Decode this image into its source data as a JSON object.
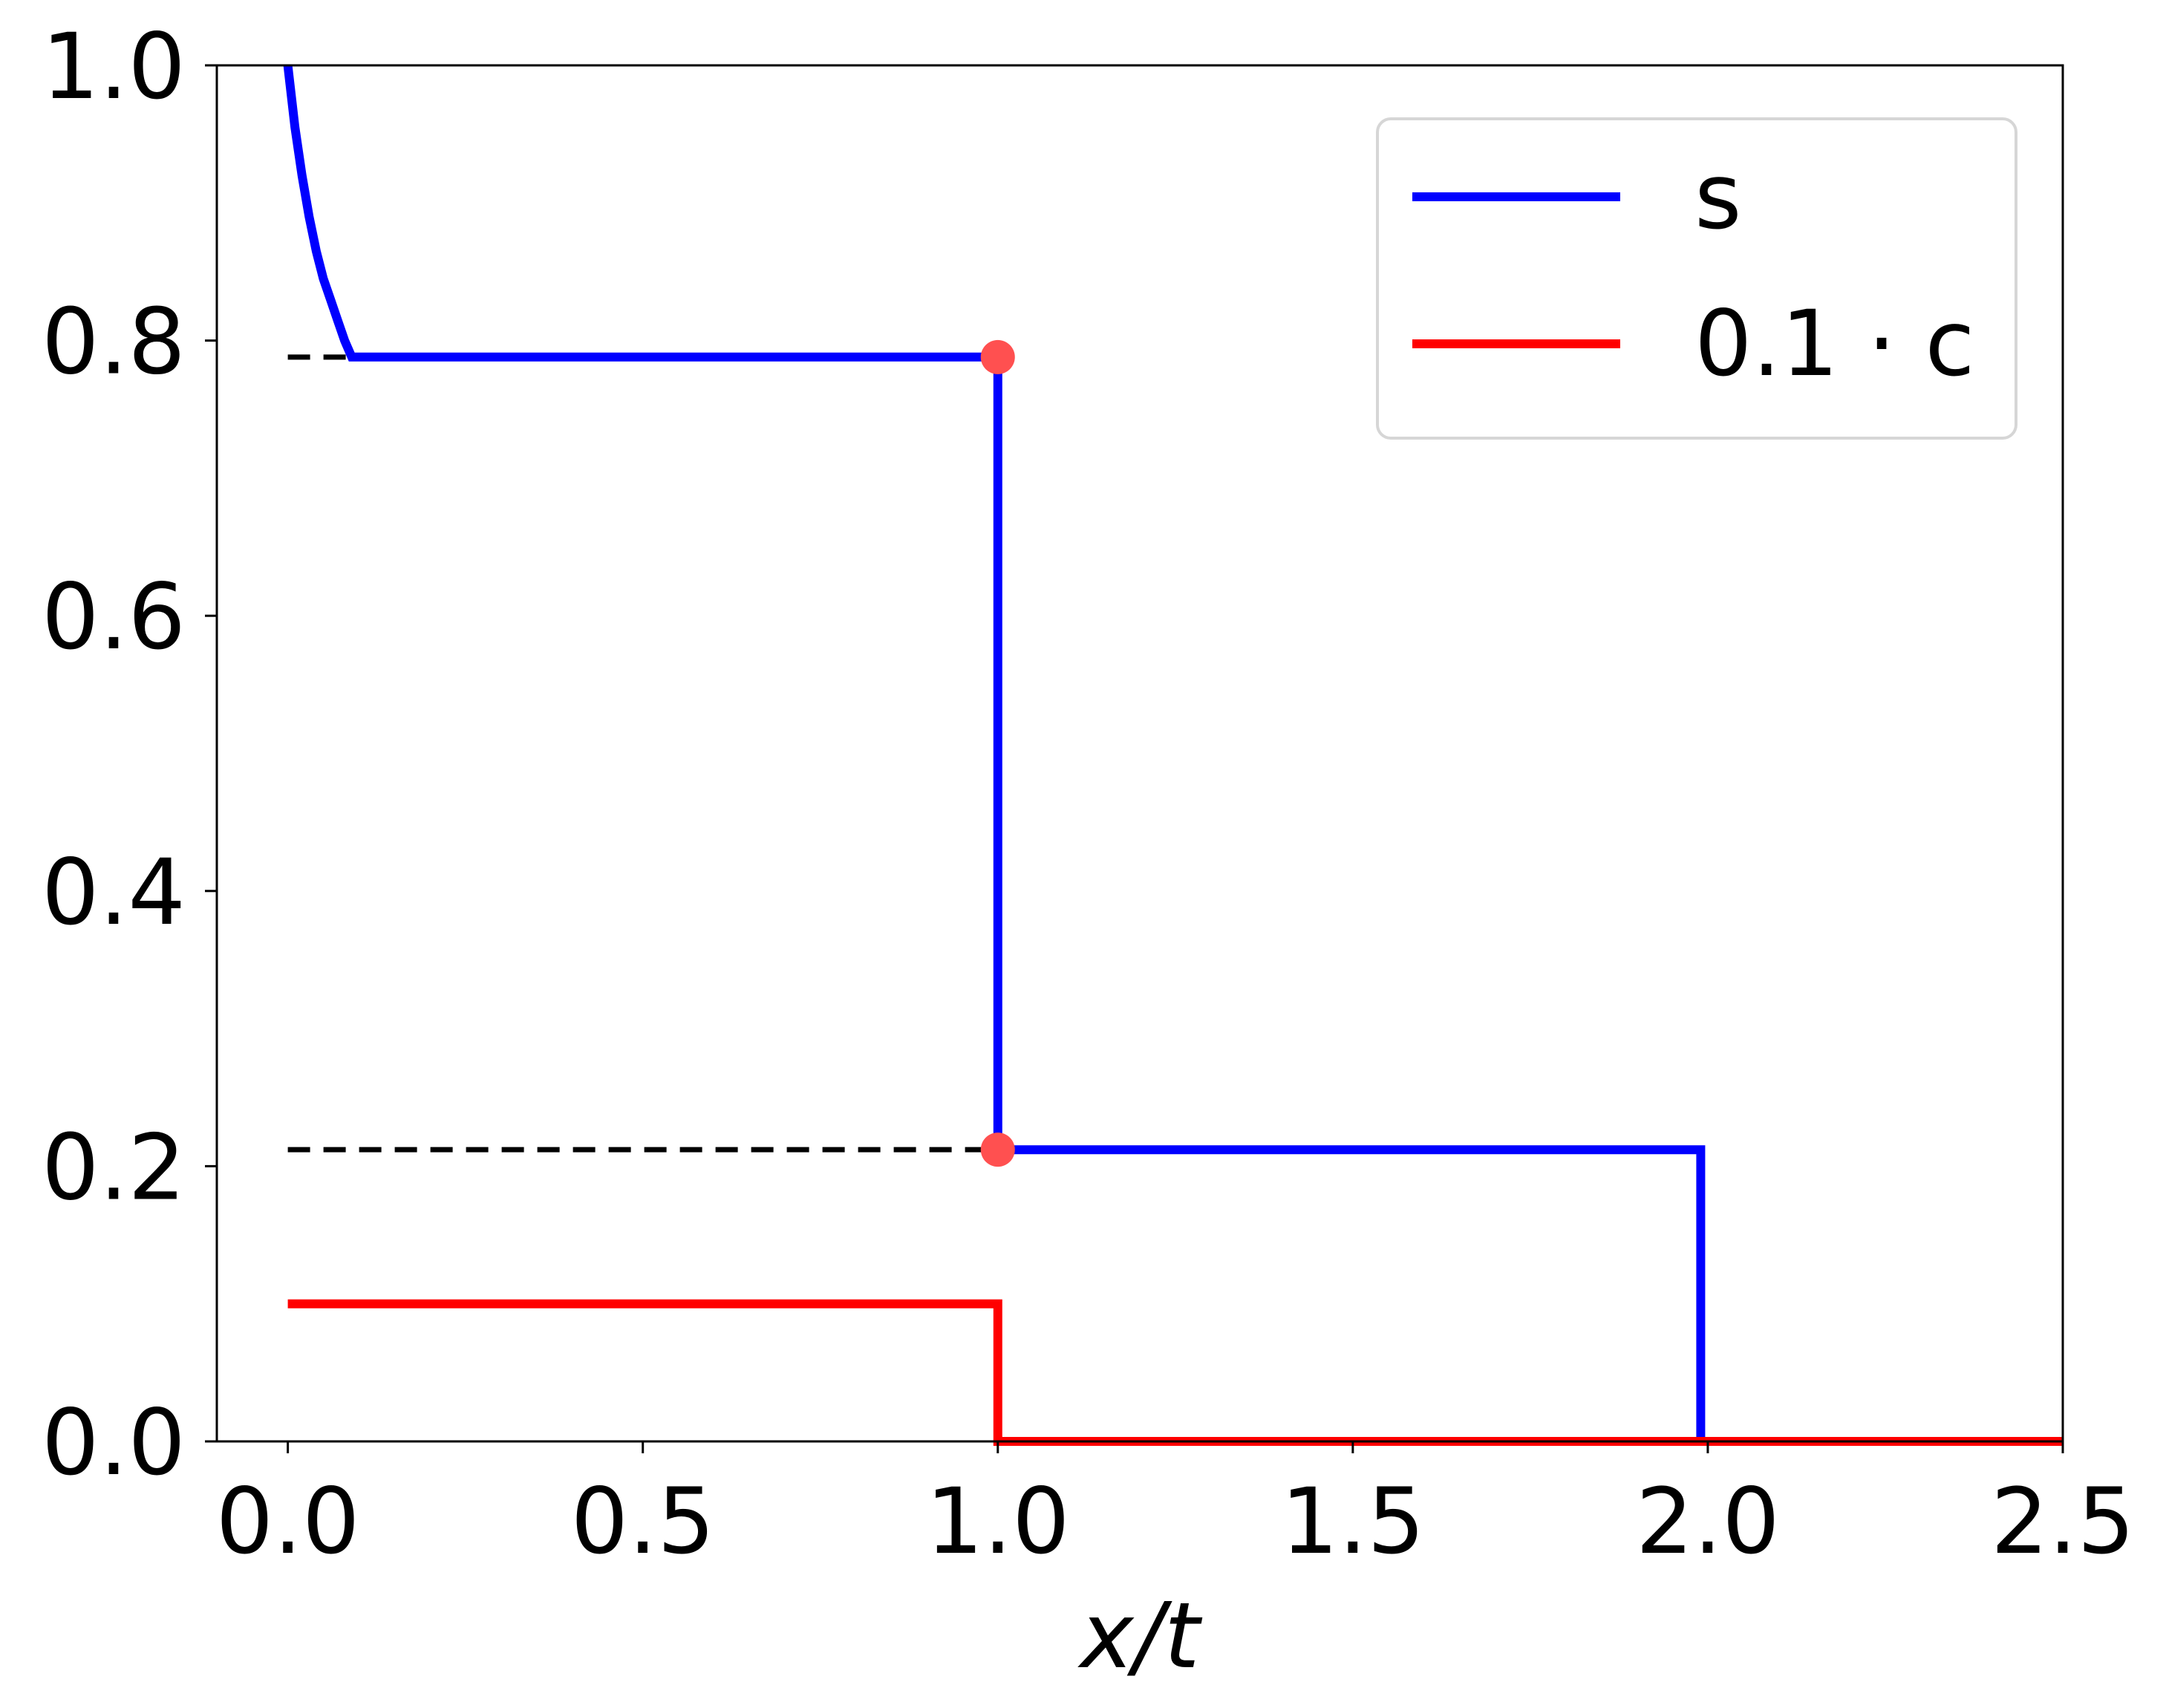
{
  "chart_data": {
    "type": "line",
    "title": "",
    "xlabel": "x/t",
    "ylabel": "",
    "xlim": [
      -0.1,
      2.5
    ],
    "ylim": [
      0.0,
      1.0
    ],
    "xticks": [
      "0.0",
      "0.5",
      "1.0",
      "1.5",
      "2.0",
      "2.5"
    ],
    "yticks": [
      "0.0",
      "0.2",
      "0.4",
      "0.6",
      "0.8",
      "1.0"
    ],
    "grid": false,
    "legend_position": "top-right",
    "series": [
      {
        "name": "s",
        "color": "#0000ff",
        "x": [
          0.0,
          0.01,
          0.02,
          0.03,
          0.04,
          0.05,
          0.06,
          0.07,
          0.08,
          0.09,
          0.09,
          1.0,
          1.0,
          1.99,
          1.99,
          2.5
        ],
        "y": [
          1.0,
          0.955,
          0.92,
          0.89,
          0.865,
          0.845,
          0.83,
          0.815,
          0.8,
          0.788,
          0.788,
          0.788,
          0.212,
          0.212,
          0.0,
          0.0
        ]
      },
      {
        "name": "0.1 · c",
        "color": "#ff0000",
        "x": [
          0.0,
          1.0,
          1.0,
          2.5
        ],
        "y": [
          0.1,
          0.1,
          0.0,
          0.0
        ]
      }
    ],
    "reference_lines": [
      {
        "style": "dashed",
        "color": "#000000",
        "x": [
          0.0,
          0.09
        ],
        "y": 0.788
      },
      {
        "style": "dashed",
        "color": "#000000",
        "x": [
          0.0,
          1.0
        ],
        "y": 0.212
      }
    ],
    "markers": [
      {
        "x": 1.0,
        "y": 0.788,
        "color": "#ff5050"
      },
      {
        "x": 1.0,
        "y": 0.212,
        "color": "#ff5050"
      }
    ]
  }
}
